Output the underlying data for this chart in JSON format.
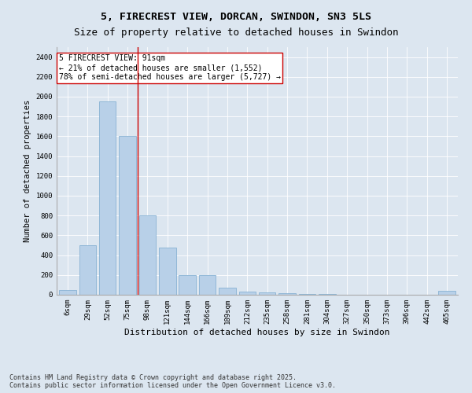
{
  "title": "5, FIRECREST VIEW, DORCAN, SWINDON, SN3 5LS",
  "subtitle": "Size of property relative to detached houses in Swindon",
  "xlabel": "Distribution of detached houses by size in Swindon",
  "ylabel": "Number of detached properties",
  "categories": [
    "6sqm",
    "29sqm",
    "52sqm",
    "75sqm",
    "98sqm",
    "121sqm",
    "144sqm",
    "166sqm",
    "189sqm",
    "212sqm",
    "235sqm",
    "258sqm",
    "281sqm",
    "304sqm",
    "327sqm",
    "350sqm",
    "373sqm",
    "396sqm",
    "442sqm",
    "465sqm"
  ],
  "values": [
    50,
    500,
    1950,
    1600,
    800,
    480,
    200,
    195,
    75,
    30,
    20,
    15,
    10,
    6,
    3,
    2,
    1,
    0,
    0,
    40
  ],
  "bar_color": "#b8d0e8",
  "bar_edge_color": "#7aaacf",
  "vline_x_index": 3.5,
  "vline_color": "#cc0000",
  "annotation_text": "5 FIRECREST VIEW: 91sqm\n← 21% of detached houses are smaller (1,552)\n78% of semi-detached houses are larger (5,727) →",
  "annotation_box_color": "#ffffff",
  "annotation_box_edge_color": "#cc0000",
  "ylim": [
    0,
    2500
  ],
  "yticks": [
    0,
    200,
    400,
    600,
    800,
    1000,
    1200,
    1400,
    1600,
    1800,
    2000,
    2200,
    2400
  ],
  "background_color": "#dce6f0",
  "grid_color": "#ffffff",
  "footnote": "Contains HM Land Registry data © Crown copyright and database right 2025.\nContains public sector information licensed under the Open Government Licence v3.0.",
  "title_fontsize": 9.5,
  "xlabel_fontsize": 8,
  "ylabel_fontsize": 7.5,
  "tick_fontsize": 6.5,
  "annotation_fontsize": 7,
  "footnote_fontsize": 6
}
